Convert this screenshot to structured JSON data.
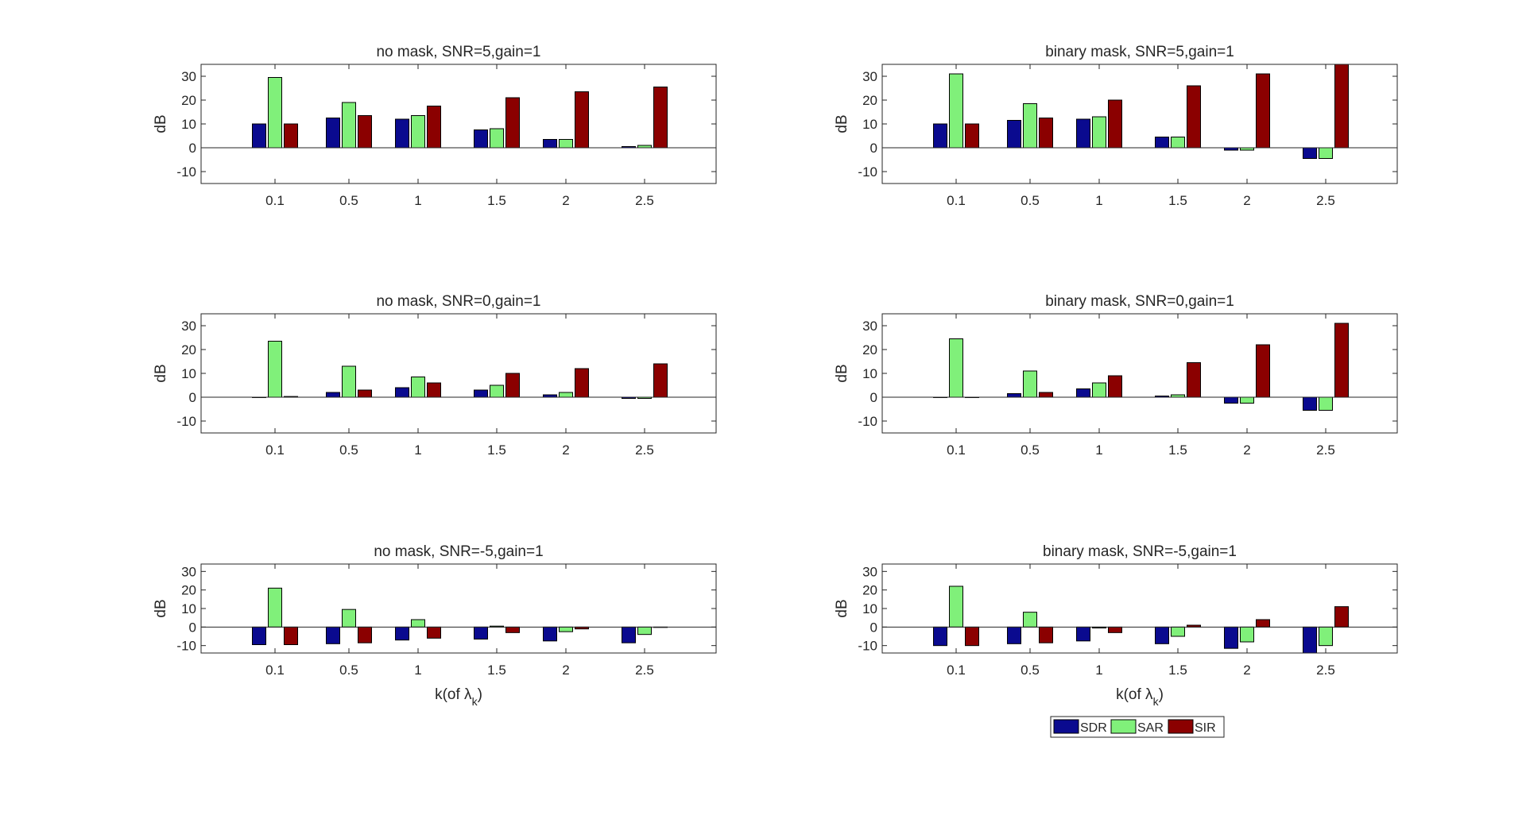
{
  "chart_data": [
    {
      "type": "bar",
      "title": "no mask, SNR=5,gain=1",
      "ylabel": "dB",
      "xlabel": "",
      "categories": [
        "0.1",
        "0.5",
        "1",
        "1.5",
        "2",
        "2.5"
      ],
      "ylim": [
        -15,
        35
      ],
      "yticks": [
        -10,
        0,
        10,
        20,
        30
      ],
      "series": [
        {
          "name": "SDR",
          "values": [
            10,
            12.5,
            12,
            7.5,
            3.5,
            0.5
          ]
        },
        {
          "name": "SAR",
          "values": [
            29.5,
            19,
            13.5,
            8,
            3.5,
            1
          ]
        },
        {
          "name": "SIR",
          "values": [
            10,
            13.5,
            17.5,
            21,
            23.5,
            25.5
          ]
        }
      ]
    },
    {
      "type": "bar",
      "title": "binary mask, SNR=5,gain=1",
      "ylabel": "dB",
      "xlabel": "",
      "categories": [
        "0.1",
        "0.5",
        "1",
        "1.5",
        "2",
        "2.5"
      ],
      "ylim": [
        -15,
        35
      ],
      "yticks": [
        -10,
        0,
        10,
        20,
        30
      ],
      "series": [
        {
          "name": "SDR",
          "values": [
            10,
            11.5,
            12,
            4.5,
            -1,
            -4.5
          ]
        },
        {
          "name": "SAR",
          "values": [
            31,
            18.5,
            13,
            4.5,
            -1,
            -4.5
          ]
        },
        {
          "name": "SIR",
          "values": [
            10,
            12.5,
            20,
            26,
            31,
            35
          ]
        }
      ]
    },
    {
      "type": "bar",
      "title": "no mask, SNR=0,gain=1",
      "ylabel": "dB",
      "xlabel": "",
      "categories": [
        "0.1",
        "0.5",
        "1",
        "1.5",
        "2",
        "2.5"
      ],
      "ylim": [
        -15,
        35
      ],
      "yticks": [
        -10,
        0,
        10,
        20,
        30
      ],
      "series": [
        {
          "name": "SDR",
          "values": [
            0,
            2,
            4,
            3,
            1,
            -0.5
          ]
        },
        {
          "name": "SAR",
          "values": [
            23.5,
            13,
            8.5,
            5,
            2,
            -0.5
          ]
        },
        {
          "name": "SIR",
          "values": [
            0.3,
            3,
            6,
            10,
            12,
            14
          ]
        }
      ]
    },
    {
      "type": "bar",
      "title": "binary mask, SNR=0,gain=1",
      "ylabel": "dB",
      "xlabel": "",
      "categories": [
        "0.1",
        "0.5",
        "1",
        "1.5",
        "2",
        "2.5"
      ],
      "ylim": [
        -15,
        35
      ],
      "yticks": [
        -10,
        0,
        10,
        20,
        30
      ],
      "series": [
        {
          "name": "SDR",
          "values": [
            0,
            1.5,
            3.5,
            0.5,
            -2.5,
            -5.5
          ]
        },
        {
          "name": "SAR",
          "values": [
            24.5,
            11,
            6,
            1,
            -2.5,
            -5.5
          ]
        },
        {
          "name": "SIR",
          "values": [
            0,
            2,
            9,
            14.5,
            22,
            31
          ]
        }
      ]
    },
    {
      "type": "bar",
      "title": "no mask, SNR=-5,gain=1",
      "ylabel": "dB",
      "xlabel": "k(of λ_k)",
      "categories": [
        "0.1",
        "0.5",
        "1",
        "1.5",
        "2",
        "2.5"
      ],
      "ylim": [
        -14,
        34
      ],
      "yticks": [
        -10,
        0,
        10,
        20,
        30
      ],
      "series": [
        {
          "name": "SDR",
          "values": [
            -9.5,
            -9,
            -7,
            -6.5,
            -7.5,
            -8.5
          ]
        },
        {
          "name": "SAR",
          "values": [
            21,
            9.5,
            4,
            0.5,
            -2.5,
            -4
          ]
        },
        {
          "name": "SIR",
          "values": [
            -9.5,
            -8.5,
            -6,
            -3,
            -1,
            0
          ]
        }
      ]
    },
    {
      "type": "bar",
      "title": "binary mask, SNR=-5,gain=1",
      "ylabel": "dB",
      "xlabel": "k(of λ_k)",
      "categories": [
        "0.1",
        "0.5",
        "1",
        "1.5",
        "2",
        "2.5"
      ],
      "ylim": [
        -14,
        34
      ],
      "yticks": [
        -10,
        0,
        10,
        20,
        30
      ],
      "series": [
        {
          "name": "SDR",
          "values": [
            -10,
            -9,
            -7.5,
            -9,
            -11.5,
            -14
          ]
        },
        {
          "name": "SAR",
          "values": [
            22,
            8,
            -0.5,
            -5,
            -8,
            -10
          ]
        },
        {
          "name": "SIR",
          "values": [
            -10,
            -8.5,
            -3,
            1,
            4,
            11
          ]
        }
      ]
    }
  ],
  "legend": {
    "placement": "bottom-right",
    "items": [
      {
        "name": "SDR",
        "color": "#0a0a8f"
      },
      {
        "name": "SAR",
        "color": "#80f07a"
      },
      {
        "name": "SIR",
        "color": "#8b0000"
      }
    ]
  },
  "colors": {
    "SDR": "#0a0a8f",
    "SAR": "#80f07a",
    "SIR": "#8b0000",
    "axis": "#262626"
  }
}
